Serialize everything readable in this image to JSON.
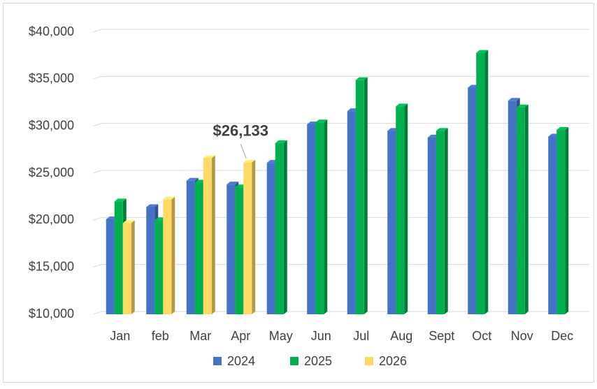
{
  "chart_data": {
    "type": "bar3d",
    "categories": [
      "Jan",
      "feb",
      "Mar",
      "Apr",
      "May",
      "Jun",
      "Jul",
      "Aug",
      "Sept",
      "Oct",
      "Nov",
      "Dec"
    ],
    "series": [
      {
        "name": "2024",
        "color": "#4472c4",
        "values": [
          20100,
          21400,
          24200,
          23800,
          26100,
          30200,
          31600,
          29500,
          28800,
          34100,
          32700,
          28900
        ]
      },
      {
        "name": "2025",
        "color": "#00b050",
        "values": [
          22000,
          20000,
          24000,
          23500,
          28200,
          30400,
          34900,
          32100,
          29500,
          37800,
          32000,
          29600
        ]
      },
      {
        "name": "2026",
        "color": "#ffd966",
        "values": [
          19700,
          22200,
          26600,
          26133,
          null,
          null,
          null,
          null,
          null,
          null,
          null,
          null
        ],
        "value_labels": [
          null,
          null,
          null,
          "$26,133",
          null,
          null,
          null,
          null,
          null,
          null,
          null,
          null
        ]
      }
    ],
    "ylim": [
      10000,
      40000
    ],
    "yticks": [
      {
        "value": 10000,
        "label": "$10,000"
      },
      {
        "value": 15000,
        "label": "$15,000"
      },
      {
        "value": 20000,
        "label": "$20,000"
      },
      {
        "value": 25000,
        "label": "$25,000"
      },
      {
        "value": 30000,
        "label": "$30,000"
      },
      {
        "value": 35000,
        "label": "$35,000"
      },
      {
        "value": 40000,
        "label": "$40,000"
      }
    ],
    "grid": true,
    "legend": "bottom"
  }
}
